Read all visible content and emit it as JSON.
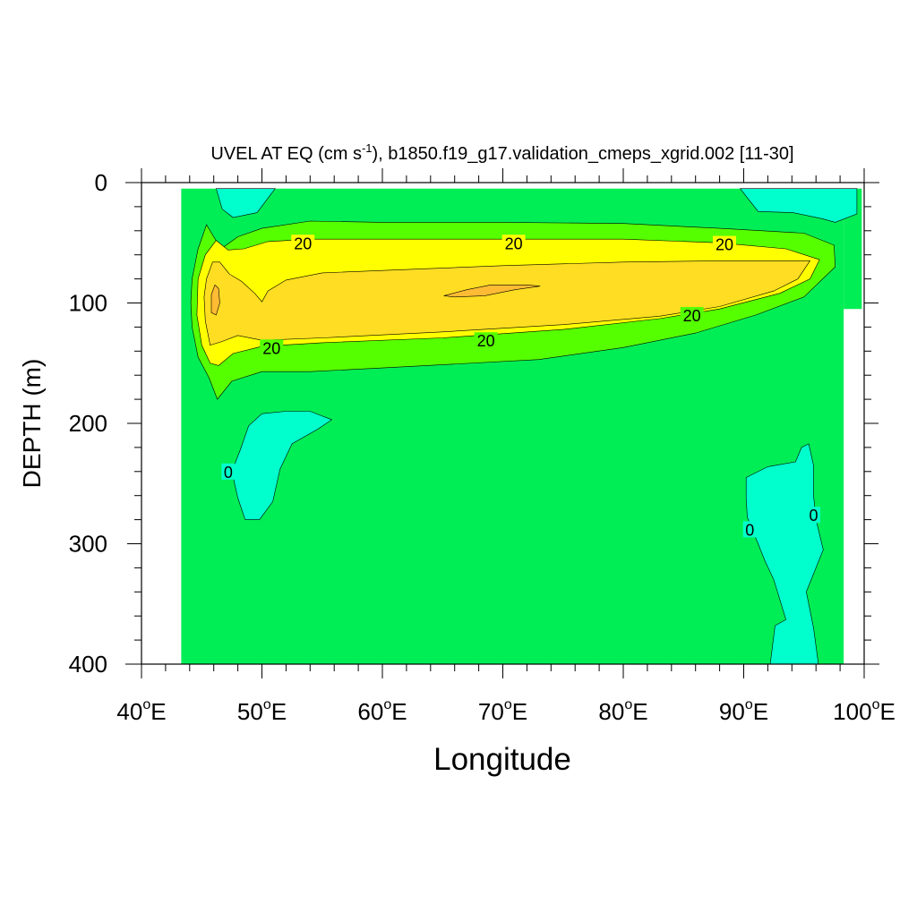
{
  "chart_data": {
    "type": "contour",
    "title_main": "UVEL AT EQ (cm s",
    "title_sup": "-1",
    "title_rest": "), b1850.f19_g17.validation_cmeps_xgrid.002 [11-30]",
    "xlabel": "Longitude",
    "ylabel": "DEPTH (m)",
    "xlim": [
      40,
      100
    ],
    "ylim": [
      0,
      400
    ],
    "y_inverted": true,
    "x_ticks": [
      {
        "value": 40,
        "num": "40",
        "deg": "o",
        "suffix": "E"
      },
      {
        "value": 50,
        "num": "50",
        "deg": "o",
        "suffix": "E"
      },
      {
        "value": 60,
        "num": "60",
        "deg": "o",
        "suffix": "E"
      },
      {
        "value": 70,
        "num": "70",
        "deg": "o",
        "suffix": "E"
      },
      {
        "value": 80,
        "num": "80",
        "deg": "o",
        "suffix": "E"
      },
      {
        "value": 90,
        "num": "90",
        "deg": "o",
        "suffix": "E"
      },
      {
        "value": 100,
        "num": "100",
        "deg": "o",
        "suffix": "E"
      }
    ],
    "y_ticks": [
      {
        "value": 0,
        "label": "0"
      },
      {
        "value": 100,
        "label": "100"
      },
      {
        "value": 200,
        "label": "200"
      },
      {
        "value": 300,
        "label": "300"
      },
      {
        "value": 400,
        "label": "400"
      }
    ],
    "fill_colors": {
      "negative": "#00ffcc",
      "level_0_10": "#00ee55",
      "level_10_20": "#55ff00",
      "level_20_30": "#ffff00",
      "level_30_40": "#ffdd22",
      "level_40_50": "#ffbb33",
      "land": "#ffffff"
    },
    "contour_labels": [
      {
        "text": "20",
        "lon": 53.4,
        "depth": 50
      },
      {
        "text": "20",
        "lon": 70.9,
        "depth": 50
      },
      {
        "text": "20",
        "lon": 88.4,
        "depth": 51
      },
      {
        "text": "20",
        "lon": 85.7,
        "depth": 110
      },
      {
        "text": "20",
        "lon": 50.8,
        "depth": 137
      },
      {
        "text": "20",
        "lon": 68.6,
        "depth": 131
      },
      {
        "text": "0",
        "lon": 47.2,
        "depth": 240
      },
      {
        "text": "0",
        "lon": 90.5,
        "depth": 288
      },
      {
        "text": "0",
        "lon": 95.8,
        "depth": 276
      }
    ],
    "regions": {
      "ocean_domain": [
        [
          43.3,
          5
        ],
        [
          98.3,
          5
        ],
        [
          98.3,
          105
        ],
        [
          99.8,
          105
        ],
        [
          99.8,
          5
        ],
        [
          98.3,
          5
        ],
        [
          98.3,
          400
        ],
        [
          43.3,
          400
        ]
      ],
      "neg_top_left": [
        [
          46.2,
          5
        ],
        [
          51.1,
          5
        ],
        [
          49.6,
          25
        ],
        [
          47.6,
          29
        ],
        [
          46.7,
          22
        ]
      ],
      "neg_top_right": [
        [
          89.7,
          5
        ],
        [
          99.4,
          5
        ],
        [
          99.4,
          26
        ],
        [
          97.6,
          33
        ],
        [
          96.5,
          30
        ],
        [
          94.1,
          25
        ],
        [
          91.2,
          24
        ]
      ],
      "neg_mid_left": [
        [
          48.9,
          202
        ],
        [
          50,
          192
        ],
        [
          52,
          190
        ],
        [
          54,
          190
        ],
        [
          55.8,
          197
        ],
        [
          54.6,
          205
        ],
        [
          52.5,
          217
        ],
        [
          51.5,
          238
        ],
        [
          50.9,
          265
        ],
        [
          49.8,
          280
        ],
        [
          48.6,
          280
        ],
        [
          48,
          262
        ],
        [
          47.5,
          240
        ],
        [
          48.2,
          222
        ]
      ],
      "neg_bottom_right": [
        [
          90.2,
          245
        ],
        [
          92,
          236
        ],
        [
          94.3,
          232
        ],
        [
          94.8,
          220
        ],
        [
          95.4,
          217
        ],
        [
          95.8,
          235
        ],
        [
          95.8,
          260
        ],
        [
          96,
          280
        ],
        [
          96.6,
          305
        ],
        [
          95.2,
          340
        ],
        [
          95.8,
          370
        ],
        [
          96.2,
          400
        ],
        [
          92.2,
          400
        ],
        [
          92.6,
          368
        ],
        [
          93.5,
          363
        ],
        [
          92.5,
          330
        ],
        [
          91.8,
          315
        ],
        [
          90.3,
          278
        ],
        [
          90.2,
          262
        ]
      ],
      "c10": [
        [
          45.6,
          162
        ],
        [
          44.7,
          145
        ],
        [
          44.2,
          120
        ],
        [
          44.1,
          100
        ],
        [
          44.2,
          80
        ],
        [
          44.7,
          55
        ],
        [
          45.4,
          35
        ],
        [
          46.6,
          55
        ],
        [
          48,
          45
        ],
        [
          50,
          38
        ],
        [
          54,
          32
        ],
        [
          60,
          33
        ],
        [
          70,
          33
        ],
        [
          80,
          34
        ],
        [
          88,
          38
        ],
        [
          95,
          42
        ],
        [
          97.5,
          52
        ],
        [
          97.6,
          70
        ],
        [
          95,
          95
        ],
        [
          91,
          110
        ],
        [
          86,
          125
        ],
        [
          80,
          137
        ],
        [
          73,
          147
        ],
        [
          60,
          154
        ],
        [
          54,
          157
        ],
        [
          50,
          157
        ],
        [
          47.5,
          165
        ],
        [
          46.3,
          180
        ]
      ],
      "c20": [
        [
          45.7,
          150
        ],
        [
          45,
          135
        ],
        [
          44.6,
          110
        ],
        [
          44.7,
          80
        ],
        [
          45.3,
          60
        ],
        [
          46.2,
          48
        ],
        [
          47.2,
          56
        ],
        [
          48.5,
          55
        ],
        [
          50.5,
          49
        ],
        [
          54,
          47
        ],
        [
          60,
          47
        ],
        [
          70,
          47
        ],
        [
          80,
          47
        ],
        [
          88,
          50
        ],
        [
          93.5,
          55
        ],
        [
          96.3,
          64
        ],
        [
          95.5,
          80
        ],
        [
          93,
          92
        ],
        [
          88,
          105
        ],
        [
          83,
          113
        ],
        [
          75,
          122
        ],
        [
          65,
          129
        ],
        [
          55,
          133
        ],
        [
          50,
          136
        ],
        [
          47.6,
          142
        ],
        [
          46.4,
          152
        ]
      ],
      "c30": [
        [
          45.7,
          135
        ],
        [
          45.3,
          115
        ],
        [
          45.2,
          95
        ],
        [
          45.4,
          80
        ],
        [
          45.9,
          66
        ],
        [
          46.5,
          66
        ],
        [
          47.3,
          76
        ],
        [
          48.3,
          82
        ],
        [
          49.4,
          92
        ],
        [
          50,
          99
        ],
        [
          50.5,
          90
        ],
        [
          52,
          81
        ],
        [
          55,
          75
        ],
        [
          60,
          73
        ],
        [
          70,
          69
        ],
        [
          80,
          66
        ],
        [
          88,
          65
        ],
        [
          95.5,
          65
        ],
        [
          94.5,
          80
        ],
        [
          92.5,
          90
        ],
        [
          88,
          103
        ],
        [
          83,
          111
        ],
        [
          75,
          118
        ],
        [
          65,
          124
        ],
        [
          55,
          129
        ],
        [
          50,
          131
        ],
        [
          48,
          127
        ],
        [
          46.7,
          132
        ]
      ],
      "c40_left": [
        [
          45.8,
          93
        ],
        [
          46.1,
          85
        ],
        [
          46.4,
          88
        ],
        [
          46.5,
          100
        ],
        [
          46.2,
          110
        ],
        [
          45.8,
          108
        ]
      ],
      "c40_center": [
        [
          65.1,
          94
        ],
        [
          67,
          89
        ],
        [
          69,
          85
        ],
        [
          72,
          85
        ],
        [
          73.1,
          86
        ],
        [
          71,
          89
        ],
        [
          68.5,
          94
        ],
        [
          66,
          95
        ]
      ]
    },
    "contour_lines": [
      {
        "from": [
          44.3,
          110
        ],
        "to": [
          43.6,
          125
        ],
        "note": "outline segment"
      }
    ]
  }
}
